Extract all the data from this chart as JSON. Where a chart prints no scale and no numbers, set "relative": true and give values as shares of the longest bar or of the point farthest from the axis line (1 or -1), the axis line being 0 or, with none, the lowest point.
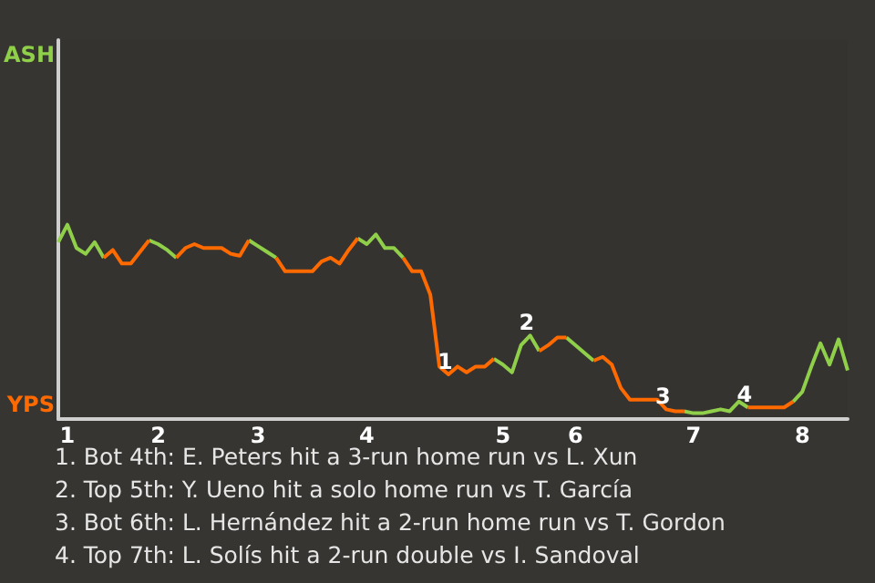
{
  "chart_data": {
    "type": "line",
    "relative": true,
    "categories": [
      null,
      "1",
      null,
      null,
      null,
      null,
      null,
      null,
      null,
      null,
      null,
      "2",
      null,
      null,
      null,
      null,
      null,
      null,
      null,
      null,
      null,
      null,
      "3",
      null,
      null,
      null,
      null,
      null,
      null,
      null,
      null,
      null,
      null,
      null,
      "4",
      null,
      null,
      null,
      null,
      null,
      null,
      null,
      null,
      null,
      null,
      null,
      null,
      null,
      null,
      "5",
      null,
      null,
      null,
      null,
      null,
      null,
      null,
      "6",
      null,
      null,
      null,
      null,
      null,
      null,
      null,
      null,
      null,
      null,
      null,
      null,
      "7",
      null,
      null,
      null,
      null,
      null,
      null,
      null,
      null,
      null,
      null,
      null,
      "8",
      null,
      null,
      null,
      null,
      null
    ],
    "series": [
      {
        "color": "#8fcf4a",
        "values": [
          0.91,
          1,
          0.88,
          0.85,
          0.91,
          0.83,
          null,
          null,
          null,
          null,
          0.92,
          0.9,
          0.87,
          0.83,
          null,
          null,
          null,
          null,
          null,
          null,
          null,
          0.92,
          0.89,
          0.86,
          0.83,
          null,
          null,
          null,
          null,
          null,
          null,
          null,
          null,
          0.93,
          0.9,
          0.95,
          0.88,
          0.88,
          0.83,
          null,
          null,
          null,
          null,
          null,
          null,
          null,
          null,
          null,
          0.31,
          0.28,
          0.24,
          0.38,
          0.43,
          0.35,
          null,
          null,
          0.42,
          0.38,
          0.34,
          0.3,
          null,
          null,
          null,
          null,
          null,
          null,
          null,
          null,
          null,
          0.04,
          0.03,
          0.03,
          0.04,
          0.05,
          0.04,
          0.09,
          0.06,
          null,
          null,
          null,
          null,
          0.09,
          0.14,
          0.27,
          0.39,
          0.28,
          0.41,
          0.25
        ]
      },
      {
        "color": "#ff6a00",
        "values": [
          null,
          null,
          null,
          null,
          null,
          0.83,
          0.87,
          0.8,
          0.8,
          0.86,
          0.92,
          null,
          null,
          0.83,
          0.88,
          0.9,
          0.88,
          0.88,
          0.88,
          0.85,
          0.84,
          0.92,
          null,
          null,
          0.83,
          0.76,
          0.76,
          0.76,
          0.76,
          0.81,
          0.83,
          0.8,
          0.87,
          0.93,
          null,
          null,
          null,
          null,
          0.83,
          0.76,
          0.76,
          0.64,
          0.27,
          0.23,
          0.27,
          0.24,
          0.27,
          0.27,
          0.31,
          null,
          null,
          null,
          null,
          0.35,
          0.38,
          0.42,
          0.42,
          null,
          null,
          0.3,
          0.32,
          0.28,
          0.16,
          0.1,
          0.1,
          0.1,
          0.1,
          0.05,
          0.04,
          0.04,
          null,
          null,
          null,
          null,
          null,
          null,
          0.06,
          0.06,
          0.06,
          0.06,
          0.06,
          0.09,
          null,
          null,
          null,
          null,
          null,
          null
        ]
      }
    ],
    "marker": "none",
    "line_style": "solid",
    "annotations": [
      "ASH",
      "YPS",
      {
        "text": "1",
        "y": 0.23
      },
      {
        "text": "2",
        "y": 0.43
      },
      {
        "text": "3",
        "y": 0.05
      },
      {
        "text": "4",
        "y": 0.06
      },
      "1. Bot 4th: E. Peters hit a 3-run home run vs L. Xun",
      "2. Top 5th: Y. Ueno hit a solo home run vs T. García",
      "3. Bot 6th: L. Hernández hit a 2-run home run vs T. Gordon",
      "4. Top 7th: L. Solís hit a 2-run double vs I. Sandoval"
    ]
  }
}
